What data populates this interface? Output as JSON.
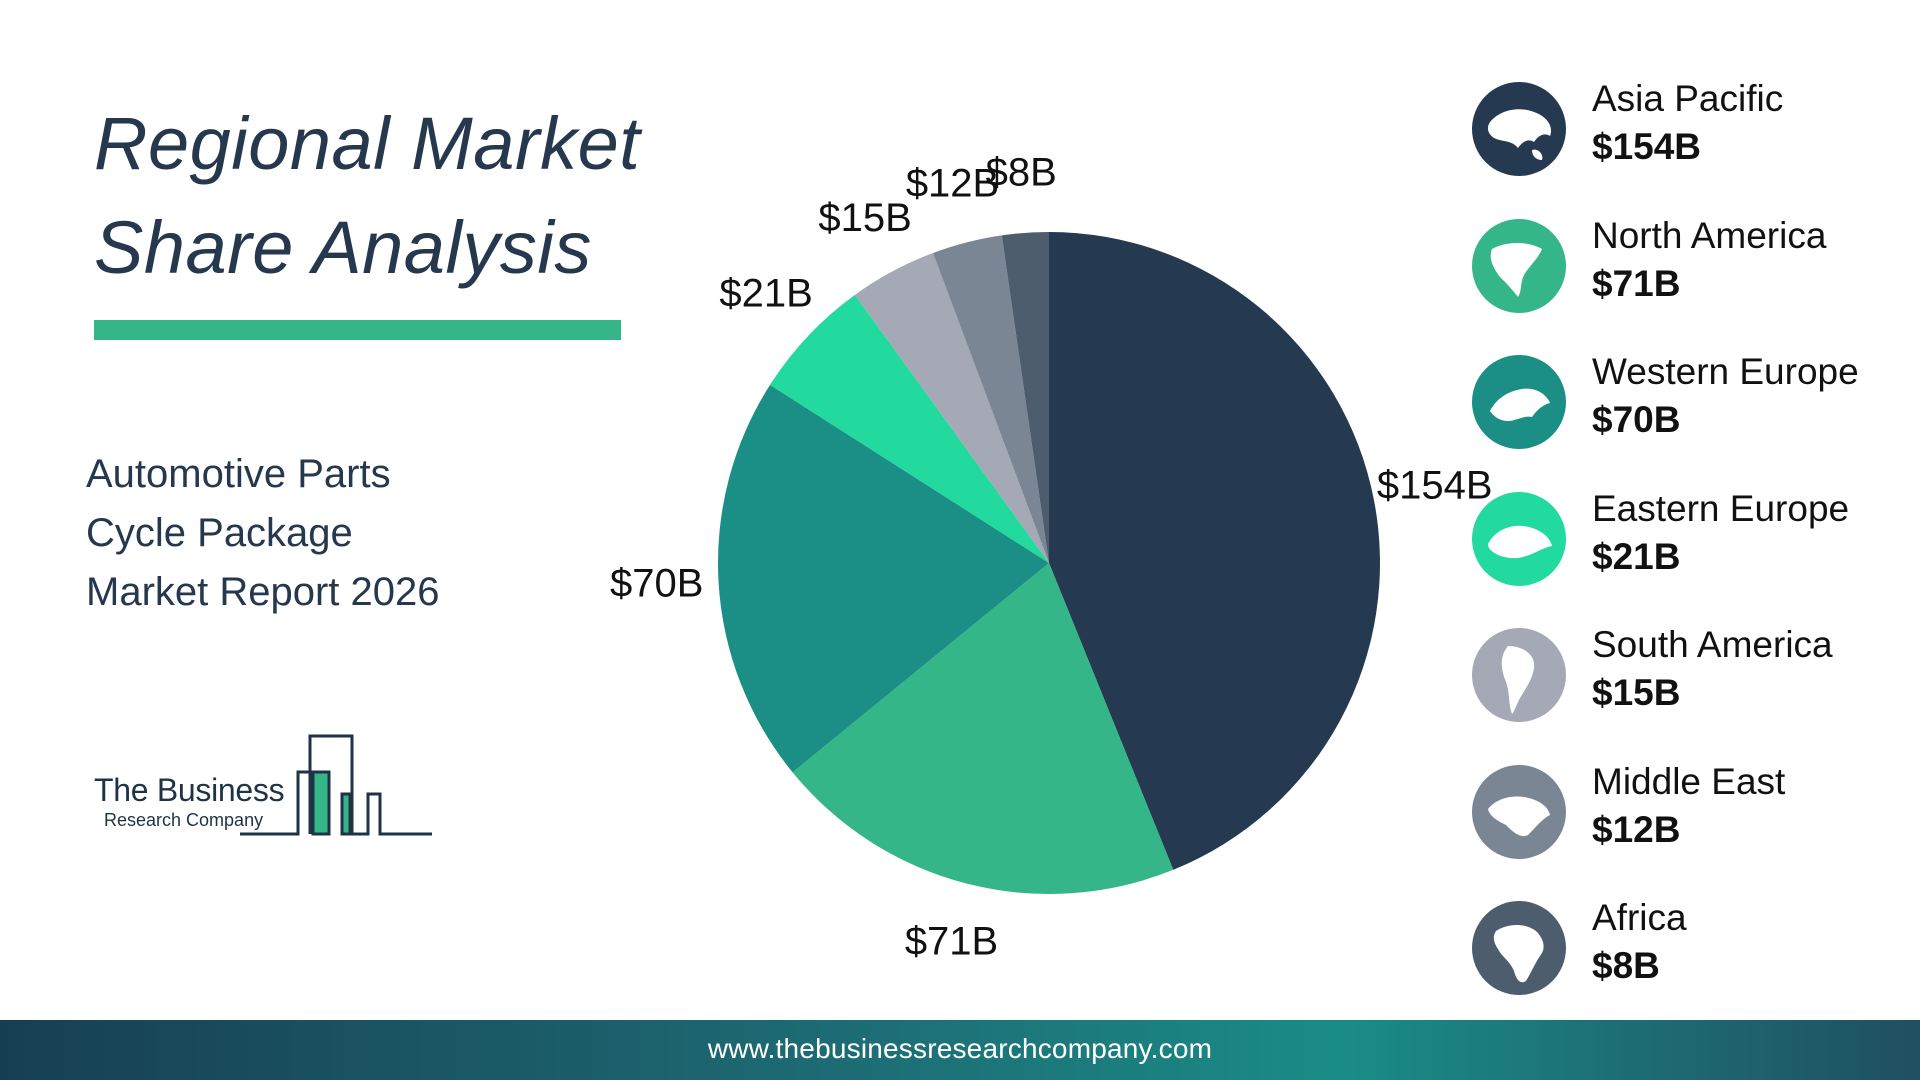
{
  "title": {
    "line1": "Regional Market",
    "line2": "Share Analysis"
  },
  "subtitle": {
    "line1": "Automotive Parts",
    "line2": "Cycle Package",
    "line3": "Market Report 2026"
  },
  "logo": {
    "name": "The Business",
    "sub": "Research Company"
  },
  "footer": {
    "url": "www.thebusinessresearchcompany.com"
  },
  "colors": {
    "accent": "#34b689",
    "title": "#25384d"
  },
  "chart_data": {
    "type": "pie",
    "title": "",
    "unit": "$B",
    "slices": [
      {
        "name": "Asia Pacific",
        "value": 154,
        "label": "$154B",
        "color": "#253a50",
        "icon": "asia-pacific-map-icon"
      },
      {
        "name": "North America",
        "value": 71,
        "label": "$71B",
        "color": "#34b689",
        "icon": "north-america-map-icon"
      },
      {
        "name": "Western Europe",
        "value": 70,
        "label": "$70B",
        "color": "#1b8f86",
        "icon": "western-europe-map-icon"
      },
      {
        "name": "Eastern Europe",
        "value": 21,
        "label": "$21B",
        "color": "#22d99e",
        "icon": "eastern-europe-map-icon"
      },
      {
        "name": "South America",
        "value": 15,
        "label": "$15B",
        "color": "#a5a9b5",
        "icon": "south-america-map-icon"
      },
      {
        "name": "Middle East",
        "value": 12,
        "label": "$12B",
        "color": "#7a8694",
        "icon": "middle-east-map-icon"
      },
      {
        "name": "Africa",
        "value": 8,
        "label": "$8B",
        "color": "#4e5d6e",
        "icon": "africa-map-icon"
      }
    ],
    "start_angle": "12 o'clock",
    "direction": "clockwise",
    "legend": "right"
  }
}
